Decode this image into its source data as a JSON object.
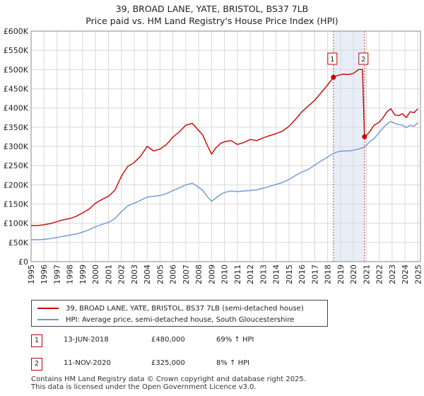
{
  "chart_data": {
    "type": "line",
    "title": "39, BROAD LANE, YATE, BRISTOL, BS37 7LB",
    "subtitle": "Price paid vs. HM Land Registry's House Price Index (HPI)",
    "xlim": [
      1995,
      2025.2
    ],
    "ylim": [
      0,
      600000
    ],
    "y_ticks": [
      0,
      50000,
      100000,
      150000,
      200000,
      250000,
      300000,
      350000,
      400000,
      450000,
      500000,
      550000,
      600000
    ],
    "y_tick_labels": [
      "£0",
      "£50K",
      "£100K",
      "£150K",
      "£200K",
      "£250K",
      "£300K",
      "£350K",
      "£400K",
      "£450K",
      "£500K",
      "£550K",
      "£600K"
    ],
    "x_ticks": [
      1995,
      1996,
      1997,
      1998,
      1999,
      2000,
      2001,
      2002,
      2003,
      2004,
      2005,
      2006,
      2007,
      2008,
      2009,
      2010,
      2011,
      2012,
      2013,
      2014,
      2015,
      2016,
      2017,
      2018,
      2019,
      2020,
      2021,
      2022,
      2023,
      2024,
      2025
    ],
    "x_tick_labels": [
      "1995",
      "1996",
      "1997",
      "1998",
      "1999",
      "2000",
      "2001",
      "2002",
      "2003",
      "2004",
      "2005",
      "2006",
      "2007",
      "2008",
      "2009",
      "2010",
      "2011",
      "2012",
      "2013",
      "2014",
      "2015",
      "2016",
      "2017",
      "2018",
      "2019",
      "2020",
      "2021",
      "2022",
      "2023",
      "2024",
      "2025"
    ],
    "grid": true,
    "shaded_period": [
      2018.45,
      2020.86
    ],
    "series": [
      {
        "name": "39, BROAD LANE, YATE, BRISTOL, BS37 7LB (semi-detached house)",
        "color": "#cc0000",
        "x": [
          1995.0,
          1995.5,
          1996.0,
          1996.5,
          1997.0,
          1997.5,
          1998.0,
          1998.5,
          1999.0,
          1999.5,
          2000.0,
          2000.5,
          2001.0,
          2001.5,
          2002.0,
          2002.5,
          2003.0,
          2003.5,
          2004.0,
          2004.5,
          2005.0,
          2005.5,
          2006.0,
          2006.5,
          2007.0,
          2007.5,
          2007.9,
          2008.3,
          2008.7,
          2009.0,
          2009.3,
          2009.7,
          2010.0,
          2010.5,
          2011.0,
          2011.5,
          2012.0,
          2012.5,
          2013.0,
          2013.5,
          2014.0,
          2014.5,
          2015.0,
          2015.5,
          2016.0,
          2016.5,
          2017.0,
          2017.5,
          2018.0,
          2018.45,
          2018.8,
          2019.2,
          2019.6,
          2020.0,
          2020.4,
          2020.7,
          2020.86,
          2021.0,
          2021.3,
          2021.6,
          2022.0,
          2022.3,
          2022.6,
          2022.9,
          2023.2,
          2023.5,
          2023.8,
          2024.1,
          2024.4,
          2024.7,
          2025.0
        ],
        "values": [
          94000,
          94000,
          96000,
          99000,
          104000,
          109000,
          112000,
          118000,
          127000,
          137000,
          152000,
          162000,
          170000,
          186000,
          222000,
          248000,
          258000,
          275000,
          300000,
          288000,
          293000,
          305000,
          324000,
          338000,
          355000,
          360000,
          345000,
          330000,
          300000,
          280000,
          295000,
          308000,
          312000,
          315000,
          305000,
          310000,
          318000,
          315000,
          322000,
          328000,
          333000,
          340000,
          352000,
          370000,
          390000,
          405000,
          420000,
          440000,
          460000,
          480000,
          485000,
          488000,
          487000,
          490000,
          500000,
          500000,
          325000,
          328000,
          340000,
          355000,
          363000,
          375000,
          390000,
          398000,
          382000,
          380000,
          385000,
          375000,
          390000,
          388000,
          398000
        ]
      },
      {
        "name": "HPI: Average price, semi-detached house, South Gloucestershire",
        "color": "#6a9ad0",
        "x": [
          1995.0,
          1995.5,
          1996.0,
          1996.5,
          1997.0,
          1997.5,
          1998.0,
          1998.5,
          1999.0,
          1999.5,
          2000.0,
          2000.5,
          2001.0,
          2001.5,
          2002.0,
          2002.5,
          2003.0,
          2003.5,
          2004.0,
          2004.5,
          2005.0,
          2005.5,
          2006.0,
          2006.5,
          2007.0,
          2007.5,
          2007.9,
          2008.3,
          2008.7,
          2009.0,
          2009.3,
          2009.7,
          2010.0,
          2010.5,
          2011.0,
          2011.5,
          2012.0,
          2012.5,
          2013.0,
          2013.5,
          2014.0,
          2014.5,
          2015.0,
          2015.5,
          2016.0,
          2016.5,
          2017.0,
          2017.5,
          2018.0,
          2018.45,
          2018.8,
          2019.2,
          2019.6,
          2020.0,
          2020.4,
          2020.86,
          2021.2,
          2021.6,
          2022.0,
          2022.3,
          2022.6,
          2022.9,
          2023.2,
          2023.5,
          2023.8,
          2024.1,
          2024.4,
          2024.7,
          2025.0
        ],
        "values": [
          57000,
          57000,
          58000,
          60000,
          63000,
          66000,
          69000,
          72000,
          77000,
          83000,
          91000,
          97000,
          102000,
          112000,
          130000,
          145000,
          152000,
          160000,
          168000,
          170000,
          172000,
          177000,
          185000,
          192000,
          200000,
          204000,
          196000,
          186000,
          168000,
          157000,
          165000,
          175000,
          180000,
          184000,
          182000,
          184000,
          185000,
          187000,
          191000,
          196000,
          201000,
          206000,
          214000,
          224000,
          233000,
          240000,
          251000,
          262000,
          272000,
          282000,
          286000,
          288000,
          288000,
          290000,
          293000,
          298000,
          310000,
          320000,
          336000,
          348000,
          358000,
          365000,
          360000,
          357000,
          355000,
          349000,
          355000,
          352000,
          362000
        ]
      }
    ],
    "sales": [
      {
        "label": "1",
        "x": 2018.45,
        "value": 480000,
        "date": "13-JUN-2018",
        "price": "£480,000",
        "hpi": "69% ↑ HPI"
      },
      {
        "label": "2",
        "x": 2020.86,
        "value": 325000,
        "date": "11-NOV-2020",
        "price": "£325,000",
        "hpi": "8% ↑ HPI"
      }
    ]
  },
  "legend": {
    "property_label": "39, BROAD LANE, YATE, BRISTOL, BS37 7LB (semi-detached house)",
    "hpi_label": "HPI: Average price, semi-detached house, South Gloucestershire"
  },
  "footer": {
    "line1": "Contains HM Land Registry data © Crown copyright and database right 2025.",
    "line2": "This data is licensed under the Open Government Licence v3.0."
  },
  "colors": {
    "property": "#cc0000",
    "hpi": "#6a9ad0",
    "shade": "#e8eef8",
    "grid": "#d8d8d8"
  }
}
